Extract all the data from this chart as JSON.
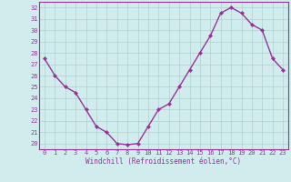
{
  "x": [
    0,
    1,
    2,
    3,
    4,
    5,
    6,
    7,
    8,
    9,
    10,
    11,
    12,
    13,
    14,
    15,
    16,
    17,
    18,
    19,
    20,
    21,
    22,
    23
  ],
  "y": [
    27.5,
    26.0,
    25.0,
    24.5,
    23.0,
    21.5,
    21.0,
    20.0,
    19.9,
    20.0,
    21.5,
    23.0,
    23.5,
    25.0,
    26.5,
    28.0,
    29.5,
    31.5,
    32.0,
    31.5,
    30.5,
    30.0,
    27.5,
    26.5
  ],
  "line_color": "#993399",
  "marker": "D",
  "marker_size": 2.0,
  "bg_color": "#d0ecec",
  "grid_color": "#b0d0d0",
  "axis_color": "#993399",
  "xlabel": "Windchill (Refroidissement éolien,°C)",
  "ylabel": "",
  "title": "",
  "xlim": [
    -0.5,
    23.5
  ],
  "ylim": [
    19.5,
    32.5
  ],
  "yticks": [
    20,
    21,
    22,
    23,
    24,
    25,
    26,
    27,
    28,
    29,
    30,
    31,
    32
  ],
  "xticks": [
    0,
    1,
    2,
    3,
    4,
    5,
    6,
    7,
    8,
    9,
    10,
    11,
    12,
    13,
    14,
    15,
    16,
    17,
    18,
    19,
    20,
    21,
    22,
    23
  ],
  "tick_fontsize": 5.0,
  "xlabel_fontsize": 5.5,
  "line_width": 1.0
}
